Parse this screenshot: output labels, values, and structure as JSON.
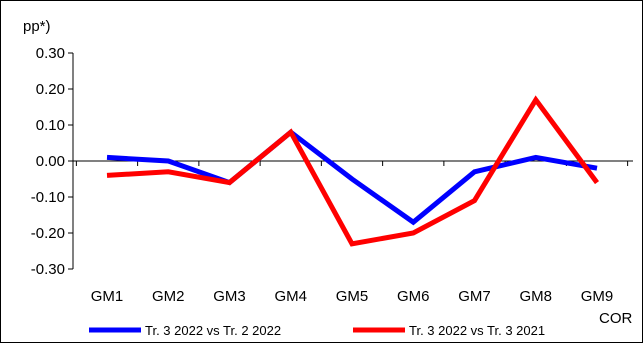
{
  "chart_data": {
    "type": "line",
    "ylabel": "pp*)",
    "xlabel": "COR",
    "categories": [
      "GM1",
      "GM2",
      "GM3",
      "GM4",
      "GM5",
      "GM6",
      "GM7",
      "GM8",
      "GM9"
    ],
    "ylim": [
      -0.3,
      0.3
    ],
    "yticks": [
      "0.30",
      "0.20",
      "0.10",
      "0.00",
      "-0.10",
      "-0.20",
      "-0.30"
    ],
    "grid": false,
    "legend_position": "bottom",
    "series": [
      {
        "name": "Tr. 3 2022 vs Tr. 2 2022",
        "color": "#0000ff",
        "values": [
          0.01,
          0.0,
          -0.06,
          0.08,
          -0.05,
          -0.17,
          -0.03,
          0.01,
          -0.02
        ]
      },
      {
        "name": "Tr. 3 2022 vs Tr. 3 2021",
        "color": "#ff0000",
        "values": [
          -0.04,
          -0.03,
          -0.06,
          0.08,
          -0.23,
          -0.2,
          -0.11,
          0.17,
          -0.06
        ]
      }
    ]
  }
}
